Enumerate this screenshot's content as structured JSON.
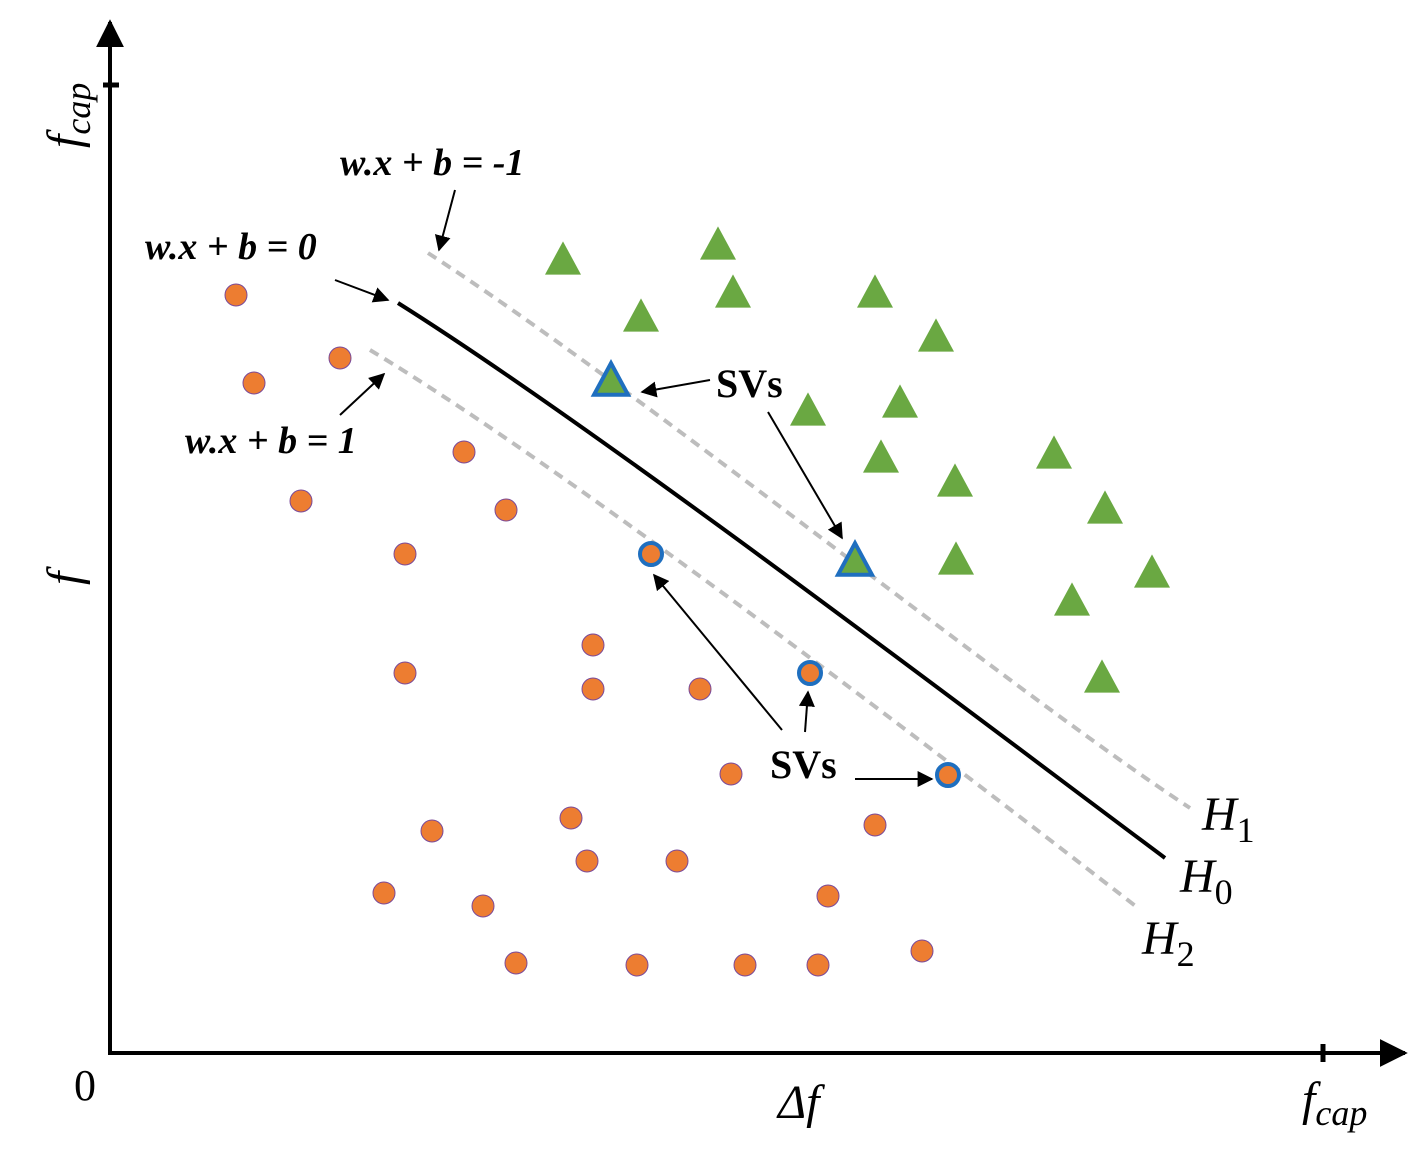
{
  "figure": {
    "equations": {
      "margin_negative": "w.x + b = -1",
      "hyperplane": "w.x + b = 0",
      "margin_positive": "w.x + b = 1"
    },
    "sv_label_top": "SVs",
    "sv_label_bottom": "SVs",
    "hyperplanes": {
      "h1": "H",
      "h1_sub": "1",
      "h0": "H",
      "h0_sub": "0",
      "h2": "H",
      "h2_sub": "2"
    },
    "axes": {
      "y_top": "f",
      "y_top_sub": "cap",
      "y_mid": "f",
      "x_mid": "Δf",
      "x_right": "f",
      "x_right_sub": "cap",
      "origin": "0"
    },
    "colors": {
      "triangle_fill": "#6aa842",
      "circle_fill": "#ed7d31",
      "sv_outline": "#1f6fbf",
      "margin_line": "#bdbdbd",
      "hyperplane_line": "#000000"
    },
    "class_positive": [
      [
        563,
        259
      ],
      [
        718,
        244
      ],
      [
        733,
        292
      ],
      [
        875,
        292
      ],
      [
        641,
        316
      ],
      [
        936,
        336
      ],
      [
        808,
        410
      ],
      [
        900,
        402
      ],
      [
        881,
        457
      ],
      [
        1054,
        453
      ],
      [
        955,
        481
      ],
      [
        1105,
        508
      ],
      [
        956,
        559
      ],
      [
        1152,
        572
      ],
      [
        1072,
        600
      ],
      [
        1102,
        677
      ]
    ],
    "class_negative": [
      [
        236,
        295
      ],
      [
        340,
        358
      ],
      [
        254,
        383
      ],
      [
        464,
        452
      ],
      [
        301,
        501
      ],
      [
        506,
        510
      ],
      [
        405,
        554
      ],
      [
        593,
        645
      ],
      [
        405,
        673
      ],
      [
        593,
        689
      ],
      [
        700,
        689
      ],
      [
        731,
        774
      ],
      [
        571,
        818
      ],
      [
        432,
        831
      ],
      [
        875,
        825
      ],
      [
        587,
        861
      ],
      [
        677,
        861
      ],
      [
        384,
        893
      ],
      [
        828,
        896
      ],
      [
        483,
        906
      ],
      [
        922,
        951
      ],
      [
        516,
        963
      ],
      [
        637,
        965
      ],
      [
        745,
        965
      ],
      [
        818,
        965
      ]
    ],
    "support_vectors_positive": [
      [
        611,
        380
      ],
      [
        855,
        560
      ]
    ],
    "support_vectors_negative": [
      [
        651,
        554
      ],
      [
        810,
        673
      ],
      [
        948,
        775
      ]
    ]
  }
}
